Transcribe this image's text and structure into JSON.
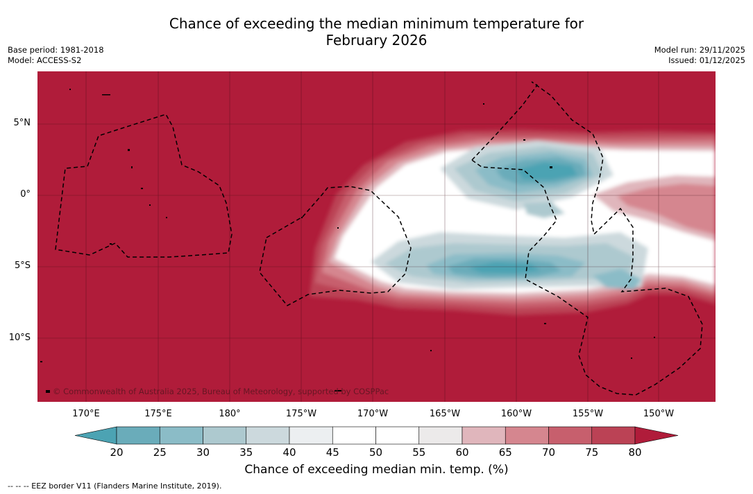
{
  "title_line1": "Chance of exceeding the median minimum temperature for",
  "title_line2": "February 2026",
  "base_period": "Base period: 1981-2018",
  "model": "Model: ACCESS-S2",
  "model_run": "Model run: 29/11/2025",
  "issued": "Issued: 01/12/2025",
  "lat_labels": [
    "5°N",
    "0°",
    "5°S",
    "10°S"
  ],
  "lon_labels": [
    "170°E",
    "175°E",
    "180°",
    "175°W",
    "170°W",
    "165°W",
    "160°W",
    "155°W",
    "150°W"
  ],
  "credit": "© Commonwealth of Australia 2025, Bureau of Meteorology, supported by COSPPac",
  "colorbar": {
    "ticks": [
      "20",
      "25",
      "30",
      "35",
      "40",
      "45",
      "50",
      "55",
      "60",
      "65",
      "70",
      "75",
      "80"
    ],
    "label": "Chance of exceeding median min. temp. (%)",
    "colors": [
      "#4ca3b3",
      "#6aacba",
      "#8bbcc7",
      "#adc9cf",
      "#ccd9dd",
      "#eceff1",
      "#ffffff",
      "#ffffff",
      "#eceaea",
      "#e0b6bc",
      "#d5868f",
      "#c75f6d",
      "#bb4255",
      "#b01c3a"
    ]
  },
  "footer": "--  --  -- EEZ border V11 (Flanders Marine Institute, 2019)."
}
